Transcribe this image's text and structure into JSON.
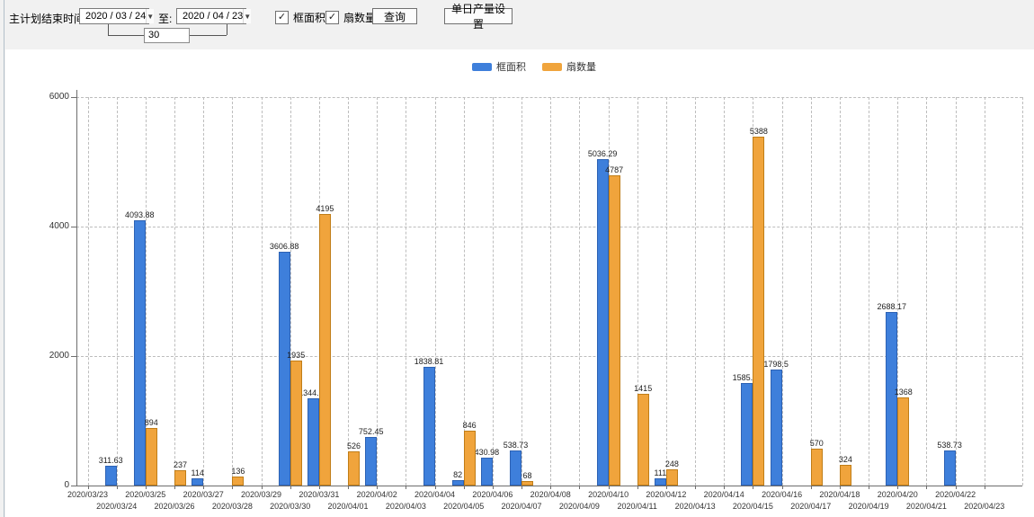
{
  "toolbar": {
    "main_label": "主计划结束时间:",
    "date_from": "2020 / 03 / 24",
    "to_label": "至:",
    "date_to": "2020 / 04 / 23",
    "span_days": "30",
    "checkbox_frame_area": "框面积",
    "checkbox_fan_count": "扇数量",
    "checkbox_checked_glyph": "✓",
    "dropdown_arrow_glyph": "▼",
    "query_button": "查询",
    "daily_output_button": "单日产量设置"
  },
  "legend": {
    "frame_area": "框面积",
    "fan_count": "扇数量"
  },
  "colors": {
    "frame_area": "#3E7FDB",
    "frame_area_border": "#2d62b4",
    "fan_count": "#F0A43C",
    "fan_count_border": "#c07d17",
    "grid": "#bdbdbd",
    "axis": "#6e6e6e"
  },
  "chart_data": {
    "type": "bar",
    "title": "",
    "xlabel": "",
    "ylabel": "",
    "ylim": [
      0,
      6000
    ],
    "yticks": [
      0,
      2000,
      4000,
      6000
    ],
    "grid": true,
    "legend_position": "top-center",
    "categories": [
      "2020/03/23",
      "2020/03/24",
      "2020/03/25",
      "2020/03/26",
      "2020/03/27",
      "2020/03/28",
      "2020/03/29",
      "2020/03/30",
      "2020/03/31",
      "2020/04/01",
      "2020/04/02",
      "2020/04/03",
      "2020/04/04",
      "2020/04/05",
      "2020/04/06",
      "2020/04/07",
      "2020/04/08",
      "2020/04/09",
      "2020/04/10",
      "2020/04/11",
      "2020/04/12",
      "2020/04/13",
      "2020/04/14",
      "2020/04/15",
      "2020/04/16",
      "2020/04/17",
      "2020/04/18",
      "2020/04/19",
      "2020/04/20",
      "2020/04/21",
      "2020/04/22",
      "2020/04/23"
    ],
    "series": [
      {
        "name": "框面积",
        "color": "#3E7FDB",
        "border": "#2d62b4",
        "values": [
          0,
          311.63,
          4093.88,
          0,
          114,
          0,
          0,
          3606.88,
          1344.95,
          0,
          752.45,
          0,
          1838.81,
          82,
          430.98,
          538.73,
          0,
          0,
          5036.29,
          0,
          111,
          0,
          0,
          1585.96,
          1798.5,
          0,
          0,
          0,
          2688.17,
          0,
          538.73,
          0
        ],
        "labels": [
          "",
          "311.63",
          "4093.88",
          "",
          "114",
          "",
          "",
          "3606.88",
          "1344.95",
          "",
          "752.45",
          "",
          "1838.81",
          "82",
          "430.98",
          "538.73",
          "",
          "",
          "5036.29",
          "",
          "111",
          "",
          "",
          "1585.96",
          "1798.5",
          "",
          "",
          "",
          "2688.17",
          "",
          "538.73",
          ""
        ]
      },
      {
        "name": "扇数量",
        "color": "#F0A43C",
        "border": "#c07d17",
        "values": [
          0,
          0,
          894,
          237,
          0,
          136,
          0,
          1935,
          4195,
          526,
          0,
          0,
          0,
          846,
          0,
          68,
          0,
          0,
          4787,
          1415,
          248,
          0,
          0,
          5388,
          0,
          570,
          324,
          0,
          1368,
          0,
          0,
          0
        ],
        "labels": [
          "",
          "",
          "894",
          "237",
          "",
          "136",
          "",
          "1935",
          "4195",
          "526",
          "",
          "",
          "",
          "846",
          "",
          "68",
          "",
          "",
          "4787",
          "1415",
          "248",
          "",
          "",
          "5388",
          "",
          "570",
          "324",
          "",
          "1368",
          "",
          "",
          ""
        ]
      }
    ]
  }
}
